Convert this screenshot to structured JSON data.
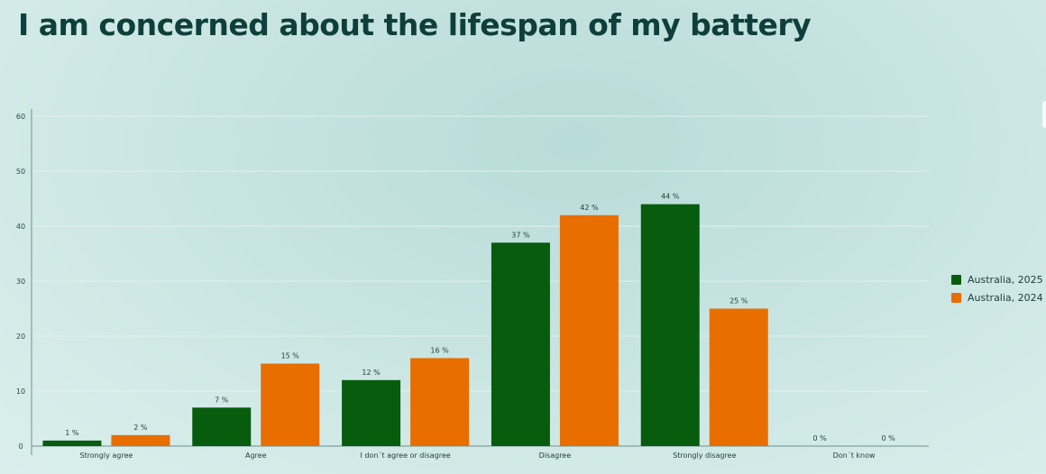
{
  "chart_data": {
    "type": "bar",
    "title": "I am concerned about the lifespan of my battery",
    "categories": [
      "Strongly agree",
      "Agree",
      "I don´t agree or disagree",
      "Disagree",
      "Strongly disagree",
      "Don´t know"
    ],
    "series": [
      {
        "name": "Australia, 2025",
        "color": "#075c0d",
        "values": [
          1,
          7,
          12,
          37,
          44,
          0
        ],
        "labels": [
          "1 %",
          "7 %",
          "12 %",
          "37 %",
          "44 %",
          "0 %"
        ]
      },
      {
        "name": "Australia, 2024",
        "color": "#e86e00",
        "values": [
          2,
          15,
          16,
          42,
          25,
          0
        ],
        "labels": [
          "2 %",
          "15 %",
          "16 %",
          "42 %",
          "25 %",
          "0 %"
        ]
      }
    ],
    "yticks": [
      "0",
      "10",
      "20",
      "30",
      "40",
      "50",
      "60"
    ],
    "ylim": [
      0,
      60
    ],
    "grid": true,
    "legend_position": "right"
  }
}
